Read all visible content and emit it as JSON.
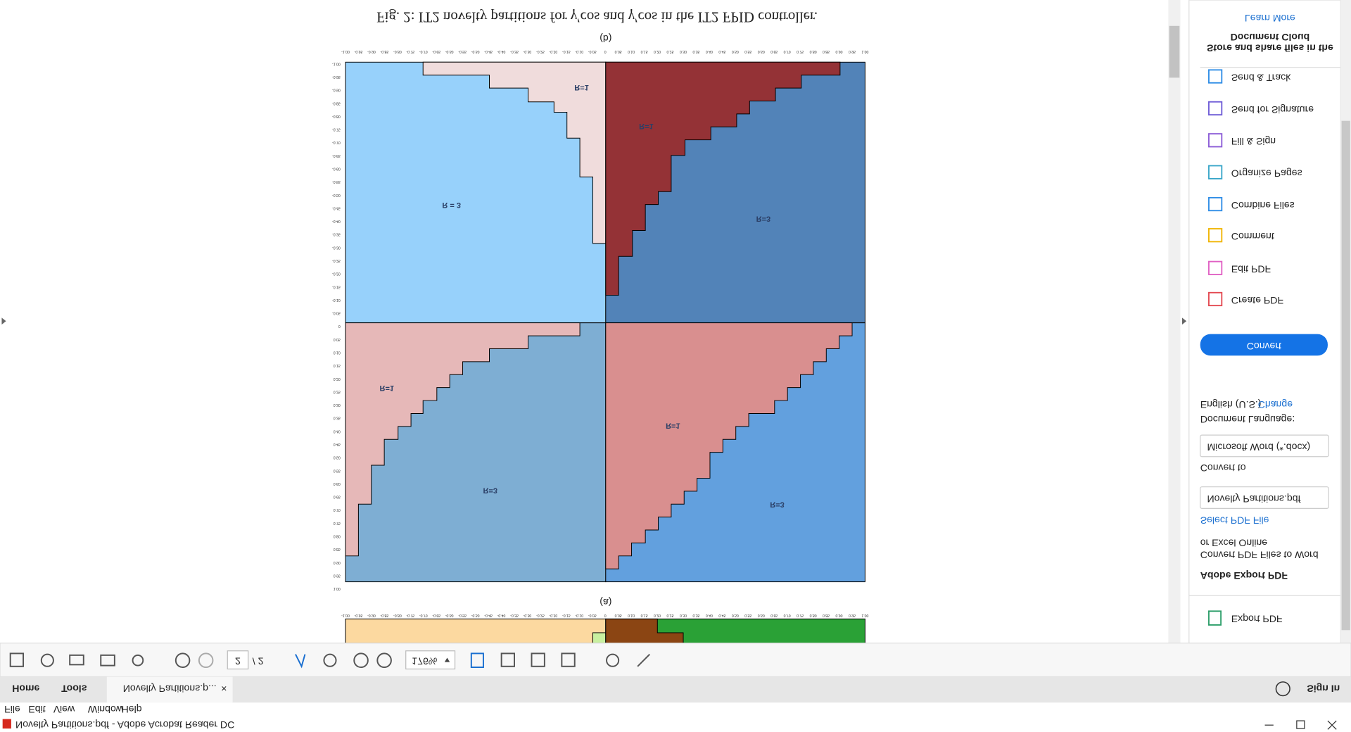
{
  "window": {
    "title": "Novelty Partitions.pdf - Adobe Acrobat Reader DC"
  },
  "menu": [
    "File",
    "Edit",
    "View",
    "Window",
    "Help"
  ],
  "tabs": {
    "home": "Home",
    "tools": "Tools",
    "document": "Novelty Partitions.p...",
    "close": "×",
    "sign_in": "Sign In"
  },
  "toolbar": {
    "page": "2",
    "page_total": "/ 2",
    "zoom": "176%"
  },
  "document": {
    "caption": "Fig. 2: IT2 novelty partitions for γ′cos and γ′cos in the IT2 FPID controller.",
    "panel_b": "(b)",
    "panel_a": "(a)",
    "axis_ticks": [
      "-1.00",
      "-0.95",
      "-0.90",
      "-0.85",
      "-0.80",
      "-0.75",
      "-0.70",
      "-0.65",
      "-0.60",
      "-0.55",
      "-0.50",
      "-0.45",
      "-0.40",
      "-0.35",
      "-0.30",
      "-0.25",
      "-0.20",
      "-0.15",
      "-0.10",
      "-0.05",
      "0",
      "0.05",
      "0.10",
      "0.15",
      "0.20",
      "0.25",
      "0.30",
      "0.35",
      "0.40",
      "0.45",
      "0.50",
      "0.55",
      "0.60",
      "0.65",
      "0.70",
      "0.75",
      "0.80",
      "0.85",
      "0.90",
      "0.95",
      "1.00"
    ],
    "region_labels": [
      "R=1",
      "R = 3",
      "R=1",
      "R=3",
      "R=1",
      "R=3",
      "R=1",
      "R=3"
    ]
  },
  "sidebar": {
    "export": "Export PDF",
    "heading": "Adobe Export PDF",
    "desc1": "Convert PDF Files to Word",
    "desc2": "or Excel Online",
    "select": "Select PDF File",
    "file": "Novelty Partitions.pdf",
    "convert_to": "Convert to",
    "format": "Microsoft Word (*.docx)",
    "language_label": "Document Language:",
    "language": "English (U.S.)",
    "change": "Change",
    "convert": "Convert",
    "tools": [
      "Create PDF",
      "Edit PDF",
      "Comment",
      "Combine Files",
      "Organize Pages",
      "Fill & Sign",
      "Send for Signature",
      "Send & Track"
    ],
    "cloud1": "Store and share files in the",
    "cloud2": "Document Cloud",
    "learn": "Learn More"
  }
}
